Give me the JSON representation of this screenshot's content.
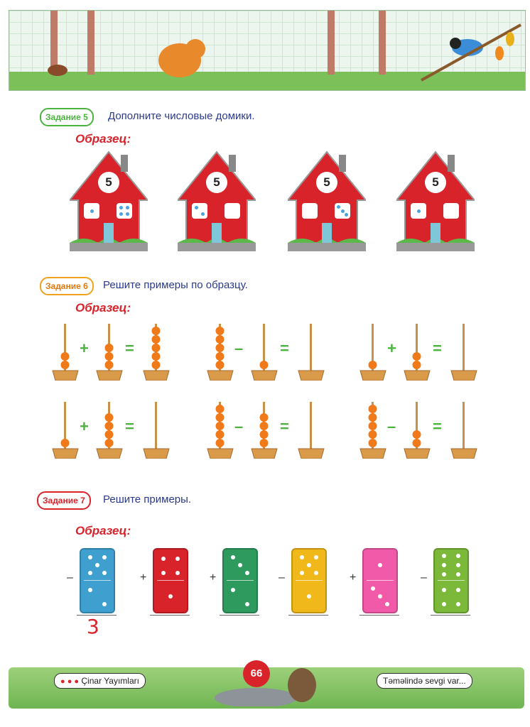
{
  "task5": {
    "badge": "Задание 5",
    "text": "Дополните числовые домики.",
    "sample": "Образец:",
    "house_number": "5"
  },
  "task6": {
    "badge": "Задание 6",
    "text": "Решите примеры по образцу.",
    "sample": "Образец:"
  },
  "task7": {
    "badge": "Задание 7",
    "text": "Решите примеры.",
    "sample": "Образец:",
    "answer": "3"
  },
  "ops": {
    "plus": "+",
    "minus": "–",
    "equals": "="
  },
  "footer": {
    "page": "66",
    "publisher": "Çinar Yayımları",
    "slogan": "Təməlində sevgi var..."
  },
  "colors": {
    "house": "#d8232a",
    "bead": "#f07a1a",
    "green": "#4bb43e"
  }
}
